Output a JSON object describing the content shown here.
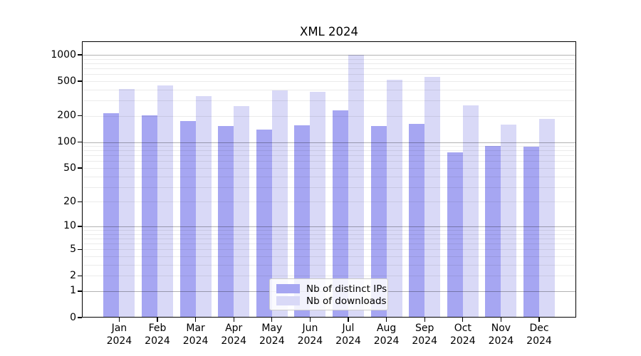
{
  "chart_data": {
    "type": "bar",
    "title": "XML 2024",
    "categories": [
      "Jan 2024",
      "Feb 2024",
      "Mar 2024",
      "Apr 2024",
      "May 2024",
      "Jun 2024",
      "Jul 2024",
      "Aug 2024",
      "Sep 2024",
      "Oct 2024",
      "Nov 2024",
      "Dec 2024"
    ],
    "series": [
      {
        "name": "Nb of distinct IPs",
        "color": "#a6a6f2",
        "values": [
          215,
          203,
          175,
          152,
          140,
          156,
          230,
          152,
          161,
          76,
          90,
          89
        ]
      },
      {
        "name": "Nb of downloads",
        "color": "#d9d9f7",
        "values": [
          410,
          450,
          335,
          257,
          393,
          377,
          995,
          515,
          560,
          264,
          159,
          185
        ]
      }
    ],
    "xlabel": "",
    "ylabel": "",
    "yscale": "log1p",
    "ylim": [
      0,
      1443
    ],
    "yticks": [
      0,
      1,
      2,
      5,
      10,
      20,
      50,
      100,
      200,
      500,
      1000
    ],
    "grid": {
      "major_values": [
        1,
        10,
        100,
        1000
      ],
      "minor_values": [
        2,
        3,
        4,
        5,
        6,
        7,
        8,
        9,
        20,
        30,
        40,
        50,
        60,
        70,
        80,
        90,
        200,
        300,
        400,
        500,
        600,
        700,
        800,
        900
      ]
    },
    "legend": {
      "position": "lower-center"
    }
  }
}
